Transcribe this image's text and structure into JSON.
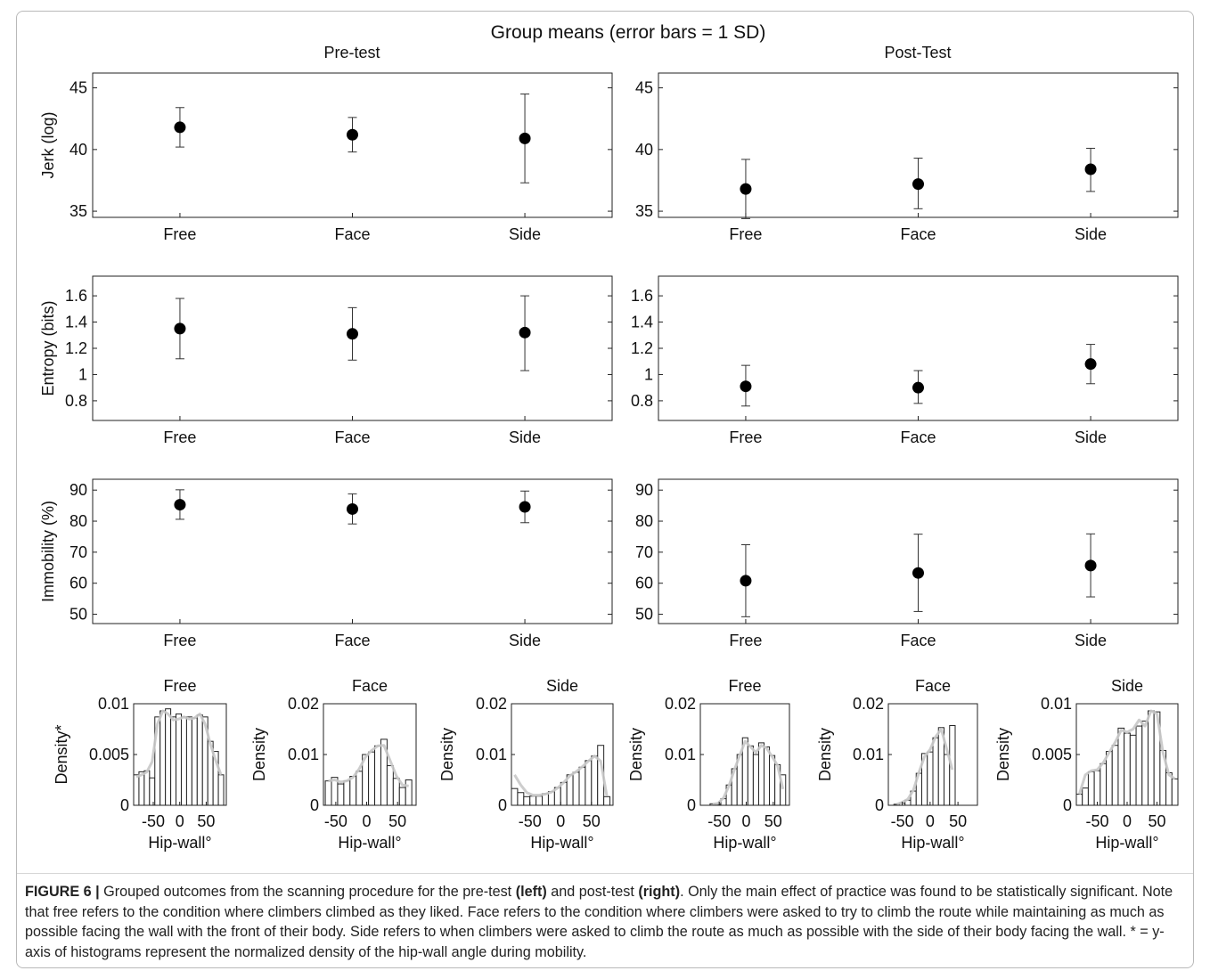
{
  "suptitle": "Group means (error bars = 1 SD)",
  "col_titles": [
    "Pre-test",
    "Post-Test"
  ],
  "caption": {
    "label": "FIGURE 6 |",
    "t1": " Grouped outcomes from the scanning procedure for the pre-test ",
    "b1": "(left)",
    "t2": " and post-test ",
    "b2": "(right)",
    "t3": ". Only the main effect of practice was found to be statistically significant. Note that free refers to the condition where climbers climbed as they liked. Face refers to the condition where climbers were asked to try to climb the route while maintaining as much as possible facing the wall with the front of their body. Side refers to when climbers were asked to climb the route as much as possible with the side of their body facing the wall. * = y-axis of histograms represent the normalized density of the hip-wall angle during mobility."
  },
  "colors": {
    "marker": "#000000",
    "bar_fill": "#ffffff",
    "bar_edge": "#222222",
    "density_curve": "#c8c8c8"
  },
  "chart_data": [
    {
      "id": "jerk-pre",
      "type": "scatter",
      "title": "",
      "xlabel": "",
      "ylabel": "Jerk (log)",
      "categories": [
        "Free",
        "Face",
        "Side"
      ],
      "ylim": [
        34.5,
        46.2
      ],
      "yticks": [
        35,
        40,
        45
      ],
      "ytick_labels": [
        "35",
        "40",
        "45"
      ],
      "series": [
        {
          "values": [
            41.8,
            41.2,
            40.9
          ],
          "error_low": [
            40.2,
            39.8,
            37.3
          ],
          "error_high": [
            43.4,
            42.6,
            44.5
          ]
        }
      ]
    },
    {
      "id": "jerk-post",
      "type": "scatter",
      "title": "",
      "xlabel": "",
      "ylabel": "",
      "categories": [
        "Free",
        "Face",
        "Side"
      ],
      "ylim": [
        34.5,
        46.2
      ],
      "yticks": [
        35,
        40,
        45
      ],
      "ytick_labels": [
        "35",
        "40",
        "45"
      ],
      "series": [
        {
          "values": [
            36.8,
            37.2,
            38.4
          ],
          "error_low": [
            34.4,
            35.2,
            36.6
          ],
          "error_high": [
            39.2,
            39.3,
            40.1
          ]
        }
      ]
    },
    {
      "id": "entropy-pre",
      "type": "scatter",
      "title": "",
      "xlabel": "",
      "ylabel": "Entropy (bits)",
      "categories": [
        "Free",
        "Face",
        "Side"
      ],
      "ylim": [
        0.65,
        1.75
      ],
      "yticks": [
        0.8,
        1,
        1.2,
        1.4,
        1.6
      ],
      "ytick_labels": [
        "0.8",
        "1",
        "1.2",
        "1.4",
        "1.6"
      ],
      "series": [
        {
          "values": [
            1.35,
            1.31,
            1.32
          ],
          "error_low": [
            1.12,
            1.11,
            1.03
          ],
          "error_high": [
            1.58,
            1.51,
            1.6
          ]
        }
      ]
    },
    {
      "id": "entropy-post",
      "type": "scatter",
      "title": "",
      "xlabel": "",
      "ylabel": "",
      "categories": [
        "Free",
        "Face",
        "Side"
      ],
      "ylim": [
        0.65,
        1.75
      ],
      "yticks": [
        0.8,
        1,
        1.2,
        1.4,
        1.6
      ],
      "ytick_labels": [
        "0.8",
        "1",
        "1.2",
        "1.4",
        "1.6"
      ],
      "series": [
        {
          "values": [
            0.91,
            0.9,
            1.08
          ],
          "error_low": [
            0.76,
            0.78,
            0.93
          ],
          "error_high": [
            1.07,
            1.03,
            1.23
          ]
        }
      ]
    },
    {
      "id": "immobility-pre",
      "type": "scatter",
      "title": "",
      "xlabel": "",
      "ylabel": "Immobility (%)",
      "categories": [
        "Free",
        "Face",
        "Side"
      ],
      "ylim": [
        47,
        93.5
      ],
      "yticks": [
        50,
        60,
        70,
        80,
        90
      ],
      "ytick_labels": [
        "50",
        "60",
        "70",
        "80",
        "90"
      ],
      "series": [
        {
          "values": [
            85.3,
            83.9,
            84.6
          ],
          "error_low": [
            80.6,
            79.1,
            79.5
          ],
          "error_high": [
            90.1,
            88.8,
            89.7
          ]
        }
      ]
    },
    {
      "id": "immobility-post",
      "type": "scatter",
      "title": "",
      "xlabel": "",
      "ylabel": "",
      "categories": [
        "Free",
        "Face",
        "Side"
      ],
      "ylim": [
        47,
        93.5
      ],
      "yticks": [
        50,
        60,
        70,
        80,
        90
      ],
      "ytick_labels": [
        "50",
        "60",
        "70",
        "80",
        "90"
      ],
      "series": [
        {
          "values": [
            60.8,
            63.3,
            65.7
          ],
          "error_low": [
            49.2,
            50.9,
            55.6
          ],
          "error_high": [
            72.4,
            75.8,
            75.9
          ]
        }
      ]
    },
    {
      "id": "hist-pre-free",
      "type": "bar",
      "title": "Free",
      "xlabel": "Hip-wall°",
      "ylabel": "Density*",
      "xlim": [
        -87,
        88
      ],
      "xticks": [
        -50,
        0,
        50
      ],
      "xtick_labels": [
        "-50",
        "0",
        "50"
      ],
      "ylim": [
        0,
        0.01
      ],
      "yticks": [
        0,
        0.005,
        0.01
      ],
      "ytick_labels": [
        "0",
        "0.005",
        "0.01"
      ],
      "bin_width": 10,
      "bin_starts": [
        -87,
        -77,
        -67,
        -57,
        -47,
        -37,
        -27,
        -17,
        -7,
        3,
        13,
        23,
        33,
        43,
        53,
        63,
        73
      ],
      "values": [
        0.003,
        0.0033,
        0.0034,
        0.0027,
        0.0087,
        0.0093,
        0.0095,
        0.0087,
        0.009,
        0.0087,
        0.0087,
        0.0086,
        0.0089,
        0.0087,
        0.0063,
        0.0053,
        0.003
      ],
      "curve": [
        0.0028,
        0.003,
        0.0033,
        0.0043,
        0.008,
        0.0093,
        0.009,
        0.0084,
        0.0085,
        0.0087,
        0.0085,
        0.0086,
        0.009,
        0.008,
        0.006,
        0.0044,
        0.003
      ]
    },
    {
      "id": "hist-pre-face",
      "type": "bar",
      "title": "Face",
      "xlabel": "Hip-wall°",
      "ylabel": "Density",
      "xlim": [
        -70,
        80
      ],
      "xticks": [
        -50,
        0,
        50
      ],
      "xtick_labels": [
        "-50",
        "0",
        "50"
      ],
      "ylim": [
        0,
        0.02
      ],
      "yticks": [
        0,
        0.01,
        0.02
      ],
      "ytick_labels": [
        "0",
        "0.01",
        "0.02"
      ],
      "bin_width": 10,
      "bin_starts": [
        -67,
        -57,
        -47,
        -37,
        -27,
        -17,
        -7,
        3,
        13,
        23,
        33,
        43,
        53,
        63
      ],
      "values": [
        0.0048,
        0.0055,
        0.0042,
        0.0048,
        0.0057,
        0.0067,
        0.01,
        0.0105,
        0.0117,
        0.013,
        0.0078,
        0.0053,
        0.0035,
        0.005
      ],
      "curve": [
        0.0048,
        0.005,
        0.0046,
        0.0048,
        0.0055,
        0.0072,
        0.0095,
        0.0108,
        0.0117,
        0.0118,
        0.0088,
        0.0058,
        0.004,
        0.0038
      ]
    },
    {
      "id": "hist-pre-side",
      "type": "bar",
      "title": "Side",
      "xlabel": "Hip-wall°",
      "ylabel": "Density",
      "xlim": [
        -80,
        85
      ],
      "xticks": [
        -50,
        0,
        50
      ],
      "xtick_labels": [
        "-50",
        "0",
        "50"
      ],
      "ylim": [
        0,
        0.02
      ],
      "yticks": [
        0,
        0.01,
        0.02
      ],
      "ytick_labels": [
        "0",
        "0.01",
        "0.02"
      ],
      "bin_width": 10,
      "bin_starts": [
        -80,
        -70,
        -60,
        -50,
        -40,
        -30,
        -20,
        -10,
        0,
        10,
        20,
        30,
        40,
        50,
        60,
        70
      ],
      "values": [
        0.0033,
        0.0025,
        0.0017,
        0.0018,
        0.0018,
        0.0023,
        0.0027,
        0.0035,
        0.0045,
        0.006,
        0.0065,
        0.0075,
        0.0088,
        0.0097,
        0.0118,
        0.0017
      ],
      "curve": [
        0.006,
        0.004,
        0.0025,
        0.002,
        0.002,
        0.0022,
        0.0026,
        0.0034,
        0.0045,
        0.0058,
        0.0066,
        0.0076,
        0.0087,
        0.0097,
        0.0087,
        0.0018
      ]
    },
    {
      "id": "hist-post-free",
      "type": "bar",
      "title": "Free",
      "xlabel": "Hip-wall°",
      "ylabel": "Density",
      "xlim": [
        -85,
        80
      ],
      "xticks": [
        -50,
        0,
        50
      ],
      "xtick_labels": [
        "-50",
        "0",
        "50"
      ],
      "ylim": [
        0,
        0.02
      ],
      "yticks": [
        0,
        0.01,
        0.02
      ],
      "ytick_labels": [
        "0",
        "0.01",
        "0.02"
      ],
      "bin_width": 10,
      "bin_starts": [
        -67,
        -57,
        -47,
        -37,
        -27,
        -17,
        -7,
        3,
        13,
        23,
        33,
        43,
        53,
        63
      ],
      "values": [
        0.0003,
        0.0002,
        0.0013,
        0.004,
        0.0072,
        0.01,
        0.0133,
        0.0117,
        0.01,
        0.0123,
        0.0115,
        0.0098,
        0.008,
        0.006
      ],
      "curve": [
        0.0002,
        0.0004,
        0.0015,
        0.0038,
        0.007,
        0.0098,
        0.0126,
        0.0115,
        0.0104,
        0.0118,
        0.0112,
        0.0096,
        0.0078,
        0.0032
      ]
    },
    {
      "id": "hist-post-face",
      "type": "bar",
      "title": "Face",
      "xlabel": "Hip-wall°",
      "ylabel": "Density",
      "xlim": [
        -75,
        85
      ],
      "xticks": [
        -50,
        0,
        50
      ],
      "xtick_labels": [
        "-50",
        "0",
        "50"
      ],
      "ylim": [
        0,
        0.02
      ],
      "yticks": [
        0,
        0.01,
        0.02
      ],
      "ytick_labels": [
        "0",
        "0.01",
        "0.02"
      ],
      "bin_width": 10,
      "bin_starts": [
        -65,
        -55,
        -45,
        -35,
        -25,
        -15,
        -5,
        5,
        15,
        25,
        35
      ],
      "values": [
        0.0002,
        0.0004,
        0.001,
        0.0028,
        0.0063,
        0.0102,
        0.0105,
        0.0133,
        0.0153,
        0.01,
        0.0157
      ],
      "curve": [
        0.0002,
        0.0006,
        0.0012,
        0.003,
        0.0065,
        0.0096,
        0.011,
        0.0135,
        0.015,
        0.011,
        0.007
      ]
    },
    {
      "id": "hist-post-side",
      "type": "bar",
      "title": "Side",
      "xlabel": "Hip-wall°",
      "ylabel": "Density",
      "xlim": [
        -85,
        85
      ],
      "xticks": [
        -50,
        0,
        50
      ],
      "xtick_labels": [
        "-50",
        "0",
        "50"
      ],
      "ylim": [
        0,
        0.01
      ],
      "yticks": [
        0,
        0.005,
        0.01
      ],
      "ytick_labels": [
        "0",
        "0.005",
        "0.01"
      ],
      "bin_width": 10,
      "bin_starts": [
        -85,
        -75,
        -65,
        -55,
        -45,
        -35,
        -25,
        -15,
        -5,
        5,
        15,
        25,
        35,
        45,
        55,
        65,
        75
      ],
      "values": [
        0.0011,
        0.0017,
        0.0033,
        0.0034,
        0.0041,
        0.0053,
        0.0059,
        0.0076,
        0.0071,
        0.0069,
        0.0078,
        0.0083,
        0.0093,
        0.0092,
        0.0054,
        0.0032,
        0.0026
      ],
      "curve": [
        0.0011,
        0.003,
        0.0034,
        0.0035,
        0.0042,
        0.0052,
        0.0062,
        0.0074,
        0.0072,
        0.0075,
        0.0084,
        0.0078,
        0.0093,
        0.009,
        0.0052,
        0.003,
        0.0026
      ]
    }
  ]
}
